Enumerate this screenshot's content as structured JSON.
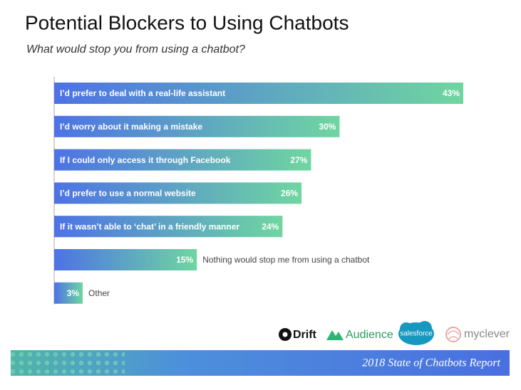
{
  "chart_data": {
    "type": "bar",
    "orientation": "horizontal",
    "title": "Potential Blockers to Using Chatbots",
    "subtitle": "What would stop you from using a chatbot?",
    "categories": [
      "I’d prefer to deal with a real-life assistant",
      "I’d worry about it making a mistake",
      "If I could only access it through Facebook",
      "I’d prefer to use a normal website",
      "If it wasn’t able to ‘chat’ in a friendly manner",
      "Nothing would stop me from using a chatbot",
      "Other"
    ],
    "values": [
      43,
      30,
      27,
      26,
      24,
      15,
      3
    ],
    "value_labels": [
      "43%",
      "30%",
      "27%",
      "26%",
      "24%",
      "15%",
      "3%"
    ],
    "gradient": [
      "#4d72e6",
      "#6fd6a0"
    ]
  },
  "logos": [
    "Drift",
    "Audience",
    "salesforce",
    "myclever"
  ],
  "footer": "2018 State of Chatbots Report"
}
